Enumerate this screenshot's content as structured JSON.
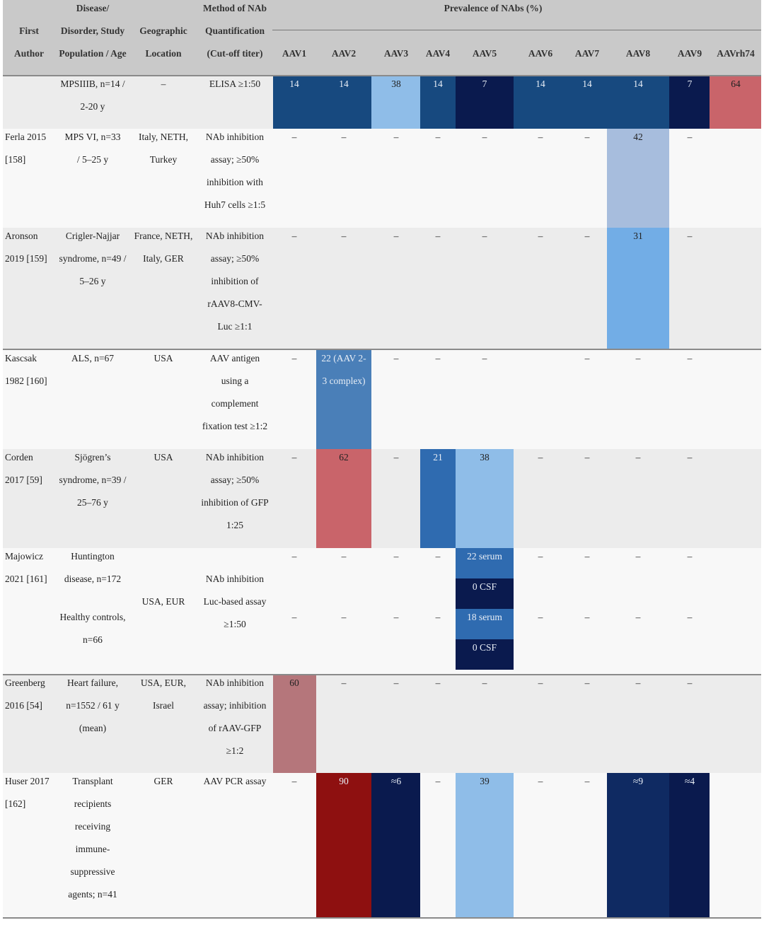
{
  "colors": {
    "header_bg": "#c9c9c9",
    "row_gray": "#ececec",
    "row_white": "#f8f8f8",
    "navy": "#0a1a4e",
    "dark_blue": "#17497f",
    "mid_blue": "#2f6bb0",
    "steel_blue": "#4a7fb8",
    "sky_blue": "#8fbde8",
    "pale_blue": "#a7bddd",
    "light_blue": "#72ade6",
    "rose": "#c9646a",
    "mauve": "#b5767b",
    "dark_red": "#8e1010"
  },
  "header": {
    "col1": "First\nAuthor",
    "col2": "Disease/\nDisorder, Study\nPopulation / Age",
    "col3": "Geographic\nLocation",
    "col4": "Method of NAb\nQuantification\n(Cut-off titer)",
    "prevalence": "Prevalence of NAbs (%)",
    "serotypes": [
      "AAV1",
      "AAV2",
      "AAV3",
      "AAV4",
      "AAV5",
      "AAV6",
      "AAV7",
      "AAV8",
      "AAV9",
      "AAVrh74"
    ]
  },
  "rows": [
    {
      "author": "",
      "disease": "MPSIIIB, n=14 /\n2-20 y",
      "location": "–",
      "method": "ELISA ≥1:50",
      "values": [
        "14",
        "14",
        "38",
        "14",
        "7",
        "14",
        "14",
        "14",
        "7",
        "64"
      ]
    },
    {
      "author": "Ferla 2015\n[158]",
      "disease": "MPS VI, n=33\n/ 5–25 y",
      "location": "Italy, NETH,\nTurkey",
      "method": "NAb inhibition\nassay; ≥50%\ninhibition with\nHuh7 cells ≥1:5",
      "values": [
        "–",
        "–",
        "–",
        "–",
        "–",
        "–",
        "–",
        "42",
        "–",
        ""
      ]
    },
    {
      "author": "Aronson\n2019 [159]",
      "disease": "Crigler-Najjar\nsyndrome, n=49 /\n5–26 y",
      "location": "France, NETH,\nItaly, GER",
      "method": "NAb inhibition\nassay; ≥50%\ninhibition of\nrAAV8-CMV-\nLuc ≥1:1",
      "values": [
        "–",
        "–",
        "–",
        "–",
        "–",
        "–",
        "–",
        "31",
        "–",
        ""
      ]
    },
    {
      "author": "Kascsak\n1982 [160]",
      "disease": "ALS, n=67",
      "location": "USA",
      "method": "AAV antigen\nusing a\ncomplement\nfixation test ≥1:2",
      "values": [
        "–",
        "22 (AAV 2-\n3 complex)",
        "–",
        "–",
        "–",
        "",
        "–",
        "–",
        "–",
        ""
      ]
    },
    {
      "author": "Corden\n2017 [59]",
      "disease": "Sjögren’s\nsyndrome, n=39 /\n25–76 y",
      "location": "USA",
      "method": "NAb inhibition\nassay; ≥50%\ninhibition of GFP\n1:25",
      "values": [
        "–",
        "62",
        "–",
        "21",
        "38",
        "–",
        "–",
        "–",
        "–",
        ""
      ]
    },
    {
      "author": "Majowicz\n2021 [161]",
      "disease_a": "Huntington\ndisease, n=172",
      "disease_b": "Healthy controls,\nn=66",
      "location": "USA, EUR",
      "method": "NAb inhibition\nLuc-based assay\n≥1:50",
      "values_a": [
        "–",
        "–",
        "–",
        "–",
        "22 serum",
        "–",
        "–",
        "–",
        "–",
        ""
      ],
      "csf_a": "0 CSF",
      "values_b": [
        "–",
        "–",
        "–",
        "–",
        "18 serum",
        "–",
        "–",
        "–",
        "–",
        ""
      ],
      "csf_b": "0 CSF"
    },
    {
      "author": "Greenberg\n2016 [54]",
      "disease": "Heart failure,\nn=1552 / 61 y\n(mean)",
      "location": "USA, EUR,\nIsrael",
      "method": "NAb inhibition\nassay; inhibition\nof rAAV-GFP\n≥1:2",
      "values": [
        "60",
        "–",
        "–",
        "–",
        "–",
        "–",
        "–",
        "–",
        "–",
        ""
      ]
    },
    {
      "author": "Huser 2017\n[162]",
      "disease": "Transplant\nrecipients\nreceiving\nimmune-\nsuppressive\nagents; n=41",
      "location": "GER",
      "method": "AAV PCR assay",
      "values": [
        "–",
        "90",
        "≈6",
        "–",
        "39",
        "–",
        "–",
        "≈9",
        "≈4",
        ""
      ]
    }
  ]
}
